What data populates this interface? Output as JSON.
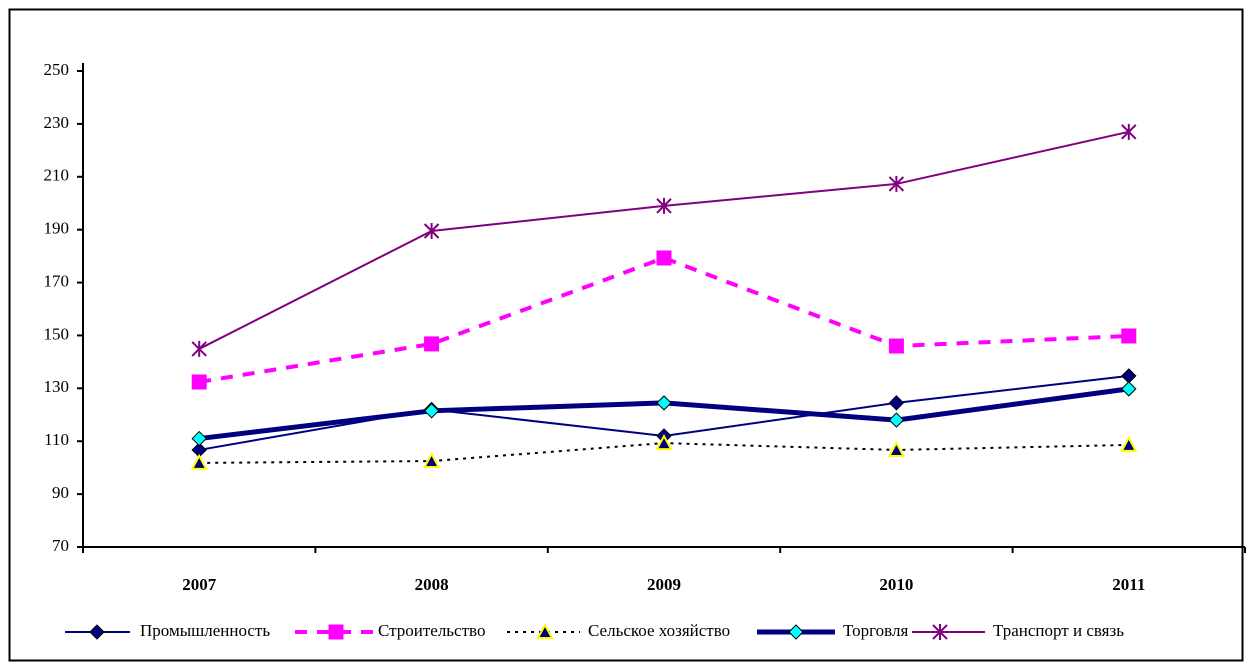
{
  "chart_data": {
    "type": "line",
    "categories": [
      "2007",
      "2008",
      "2009",
      "2010",
      "2011"
    ],
    "ylim": [
      70,
      250
    ],
    "yticks": [
      70,
      90,
      110,
      130,
      150,
      170,
      190,
      210,
      230,
      250
    ],
    "legend": "bottom",
    "series": [
      {
        "name": "Промышленность",
        "color": "#000080",
        "marker": "diamond",
        "marker_fill": "#000080",
        "dash": "solid",
        "width": 2,
        "values": [
          106.7,
          122,
          112,
          124.5,
          134.7
        ]
      },
      {
        "name": "Строительство",
        "color": "#ff00ff",
        "marker": "square",
        "marker_fill": "#ff00ff",
        "dash": "dashed",
        "width": 4,
        "values": [
          132.4,
          146.8,
          179.3,
          146,
          149.8
        ]
      },
      {
        "name": "Сельское хозяйство",
        "color": "#000000",
        "marker": "triangle",
        "marker_fill": "#000080",
        "marker_stroke": "#ffff00",
        "dash": "dotted",
        "width": 2,
        "values": [
          101.8,
          102.5,
          109.3,
          106.7,
          108.6
        ]
      },
      {
        "name": "Торговля",
        "color": "#000080",
        "marker": "diamond",
        "marker_fill": "#00ffff",
        "dash": "solid",
        "width": 5,
        "values": [
          111,
          121.5,
          124.5,
          118,
          129.8
        ]
      },
      {
        "name": "Транспорт и связь",
        "color": "#800080",
        "marker": "star",
        "marker_fill": "#800080",
        "dash": "solid",
        "width": 2,
        "values": [
          144.9,
          189.5,
          199,
          207.3,
          227
        ]
      }
    ]
  }
}
